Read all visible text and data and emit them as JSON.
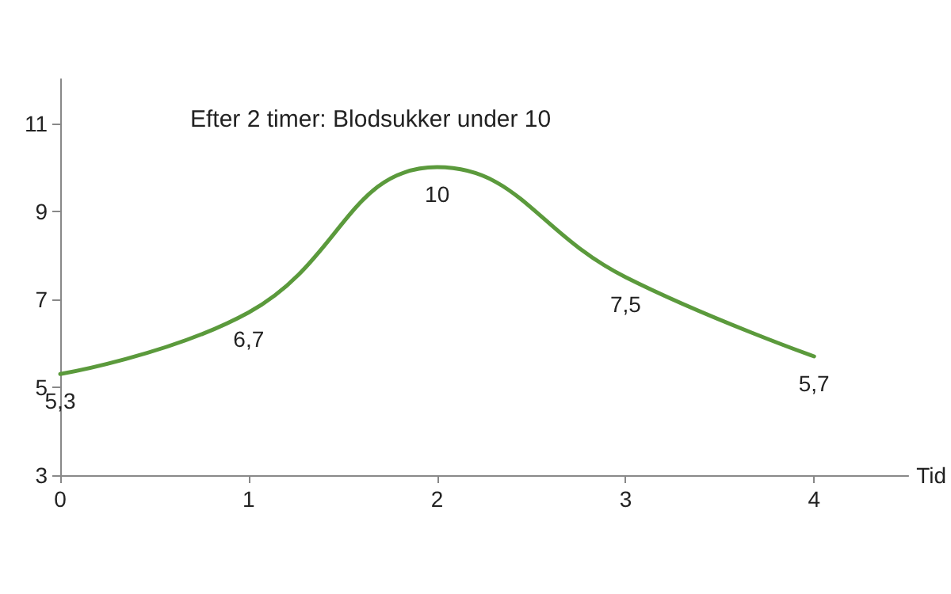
{
  "chart_data": {
    "type": "line",
    "x": [
      0,
      1,
      2,
      3,
      4
    ],
    "series": [
      {
        "color": "#5b9a3c",
        "values": [
          5.3,
          6.7,
          10,
          7.5,
          5.7
        ],
        "value_labels": [
          "5,3",
          "6,7",
          "10",
          "7,5",
          "5,7"
        ]
      }
    ],
    "xlabel": "Tid",
    "annotations": [
      "Efter 2 timer: Blodsukker under 10"
    ],
    "xlim": [
      0,
      4.5
    ],
    "xticks": [
      0,
      1,
      2,
      3,
      4
    ],
    "ylim": [
      3,
      12
    ],
    "yticks": [
      3,
      5,
      7,
      9,
      11
    ],
    "grid": false,
    "marker": "none",
    "line_style": "solid"
  }
}
